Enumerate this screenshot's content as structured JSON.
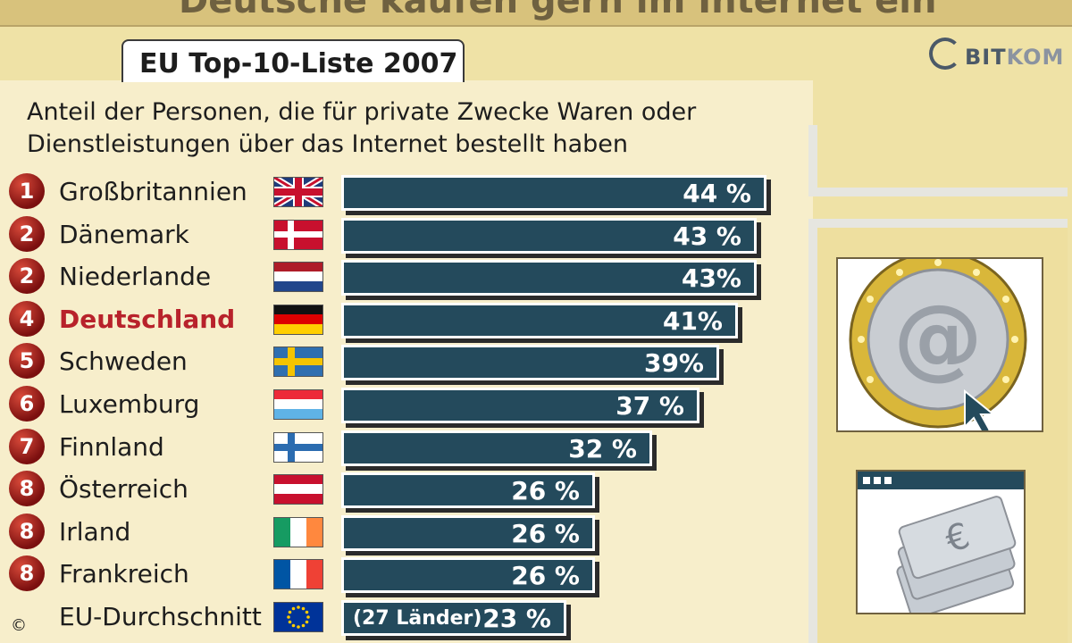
{
  "header": {
    "partial_title": "Deutsche kaufen gern im Internet ein"
  },
  "tab": {
    "label": "EU Top-10-Liste 2007"
  },
  "logo": {
    "text_a": "BIT",
    "text_b": "KOM"
  },
  "copyright": "©",
  "colors": {
    "bar_fill": "#244a5c",
    "bar_border": "#ffffff",
    "rank_badge": "#a3161a",
    "highlight_text": "#b8222b",
    "background": "#efe2a6"
  },
  "chart_data": {
    "type": "bar",
    "orientation": "horizontal",
    "title": "EU Top-10-Liste 2007",
    "subtitle_lines": [
      "Anteil der Personen, die für private Zwecke Waren oder",
      "Dienstleistungen über das Internet bestellt haben"
    ],
    "rows": [
      {
        "rank": "1",
        "country": "Großbritannien",
        "flag": "uk-flag-icon",
        "value": 44,
        "label": "44 %",
        "highlight": false
      },
      {
        "rank": "2",
        "country": "Dänemark",
        "flag": "denmark-flag-icon",
        "value": 43,
        "label": "43 %",
        "highlight": false
      },
      {
        "rank": "2",
        "country": "Niederlande",
        "flag": "netherlands-flag-icon",
        "value": 43,
        "label": "43%",
        "highlight": false
      },
      {
        "rank": "4",
        "country": "Deutschland",
        "flag": "germany-flag-icon",
        "value": 41,
        "label": "41%",
        "highlight": true
      },
      {
        "rank": "5",
        "country": "Schweden",
        "flag": "sweden-flag-icon",
        "value": 39,
        "label": "39%",
        "highlight": false
      },
      {
        "rank": "6",
        "country": "Luxemburg",
        "flag": "luxembourg-flag-icon",
        "value": 37,
        "label": "37 %",
        "highlight": false
      },
      {
        "rank": "7",
        "country": "Finnland",
        "flag": "finland-flag-icon",
        "value": 32,
        "label": "32 %",
        "highlight": false
      },
      {
        "rank": "8",
        "country": "Österreich",
        "flag": "austria-flag-icon",
        "value": 26,
        "label": "26 %",
        "highlight": false
      },
      {
        "rank": "8",
        "country": "Irland",
        "flag": "ireland-flag-icon",
        "value": 26,
        "label": "26 %",
        "highlight": false
      },
      {
        "rank": "8",
        "country": "Frankreich",
        "flag": "france-flag-icon",
        "value": 26,
        "label": "26 %",
        "highlight": false
      },
      {
        "rank": "",
        "country": "EU-Durchschnitt",
        "flag": "eu-flag-icon",
        "value": 23,
        "label": "23 %",
        "note": "(27 Länder)",
        "highlight": false
      }
    ],
    "value_unit": "%",
    "xlim": [
      0,
      45
    ]
  }
}
